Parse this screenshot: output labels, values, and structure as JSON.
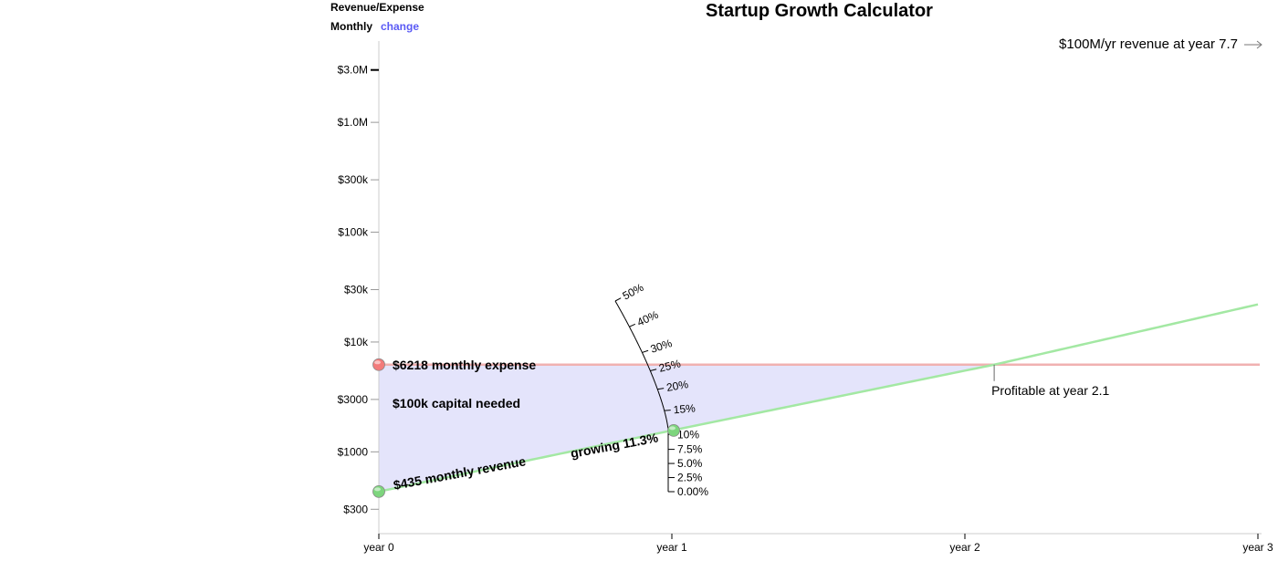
{
  "page": {
    "title": "Startup Growth Calculator"
  },
  "mode": {
    "heading": "Revenue/Expense",
    "value": "Monthly",
    "change_label": "change"
  },
  "header_note": {
    "text": "$100M/yr revenue at year 7.7",
    "icon": "arrow-right-icon"
  },
  "chart_data": {
    "type": "line",
    "title": "Startup Growth Calculator",
    "x_ticks": [
      "year 0",
      "year 1",
      "year 2",
      "year 3"
    ],
    "xlim": [
      0,
      3
    ],
    "y_ticks": [
      "$300",
      "$1000",
      "$3000",
      "$10k",
      "$30k",
      "$100k",
      "$300k",
      "$1.0M",
      "$3.0M"
    ],
    "y_tick_values": [
      300,
      1000,
      3000,
      10000,
      30000,
      100000,
      300000,
      1000000,
      3000000
    ],
    "y_scale": "log",
    "ylim": [
      180,
      5500000
    ],
    "series": [
      {
        "name": "revenue",
        "color": "#a3e8a3",
        "points": [
          [
            0,
            435
          ],
          [
            1,
            1566
          ],
          [
            2.1,
            6218
          ],
          [
            3,
            22000
          ]
        ]
      },
      {
        "name": "expense",
        "color": "#f0b1b1",
        "points": [
          [
            0,
            6218
          ],
          [
            3,
            6218
          ]
        ]
      }
    ],
    "capital_region_color": "#e4e4fb",
    "annotations": {
      "expense_label": "$6218 monthly expense",
      "capital_label": "$100k capital needed",
      "revenue_label": "$435 monthly revenue",
      "growth_label": "growing 11.3%",
      "profitable_label": "Profitable at year 2.1"
    },
    "growth_dial": {
      "ticks": [
        "0.00%",
        "2.5%",
        "5.0%",
        "7.5%",
        "10%",
        "15%",
        "20%",
        "25%",
        "30%",
        "40%",
        "50%"
      ],
      "tick_values": [
        0,
        2.5,
        5.0,
        7.5,
        10,
        15,
        20,
        25,
        30,
        40,
        50
      ],
      "current": 11.3
    },
    "handles": {
      "expense_color": "#f37b7b",
      "revenue_color": "#7dd57d",
      "growth_color": "#7dd57d"
    }
  }
}
